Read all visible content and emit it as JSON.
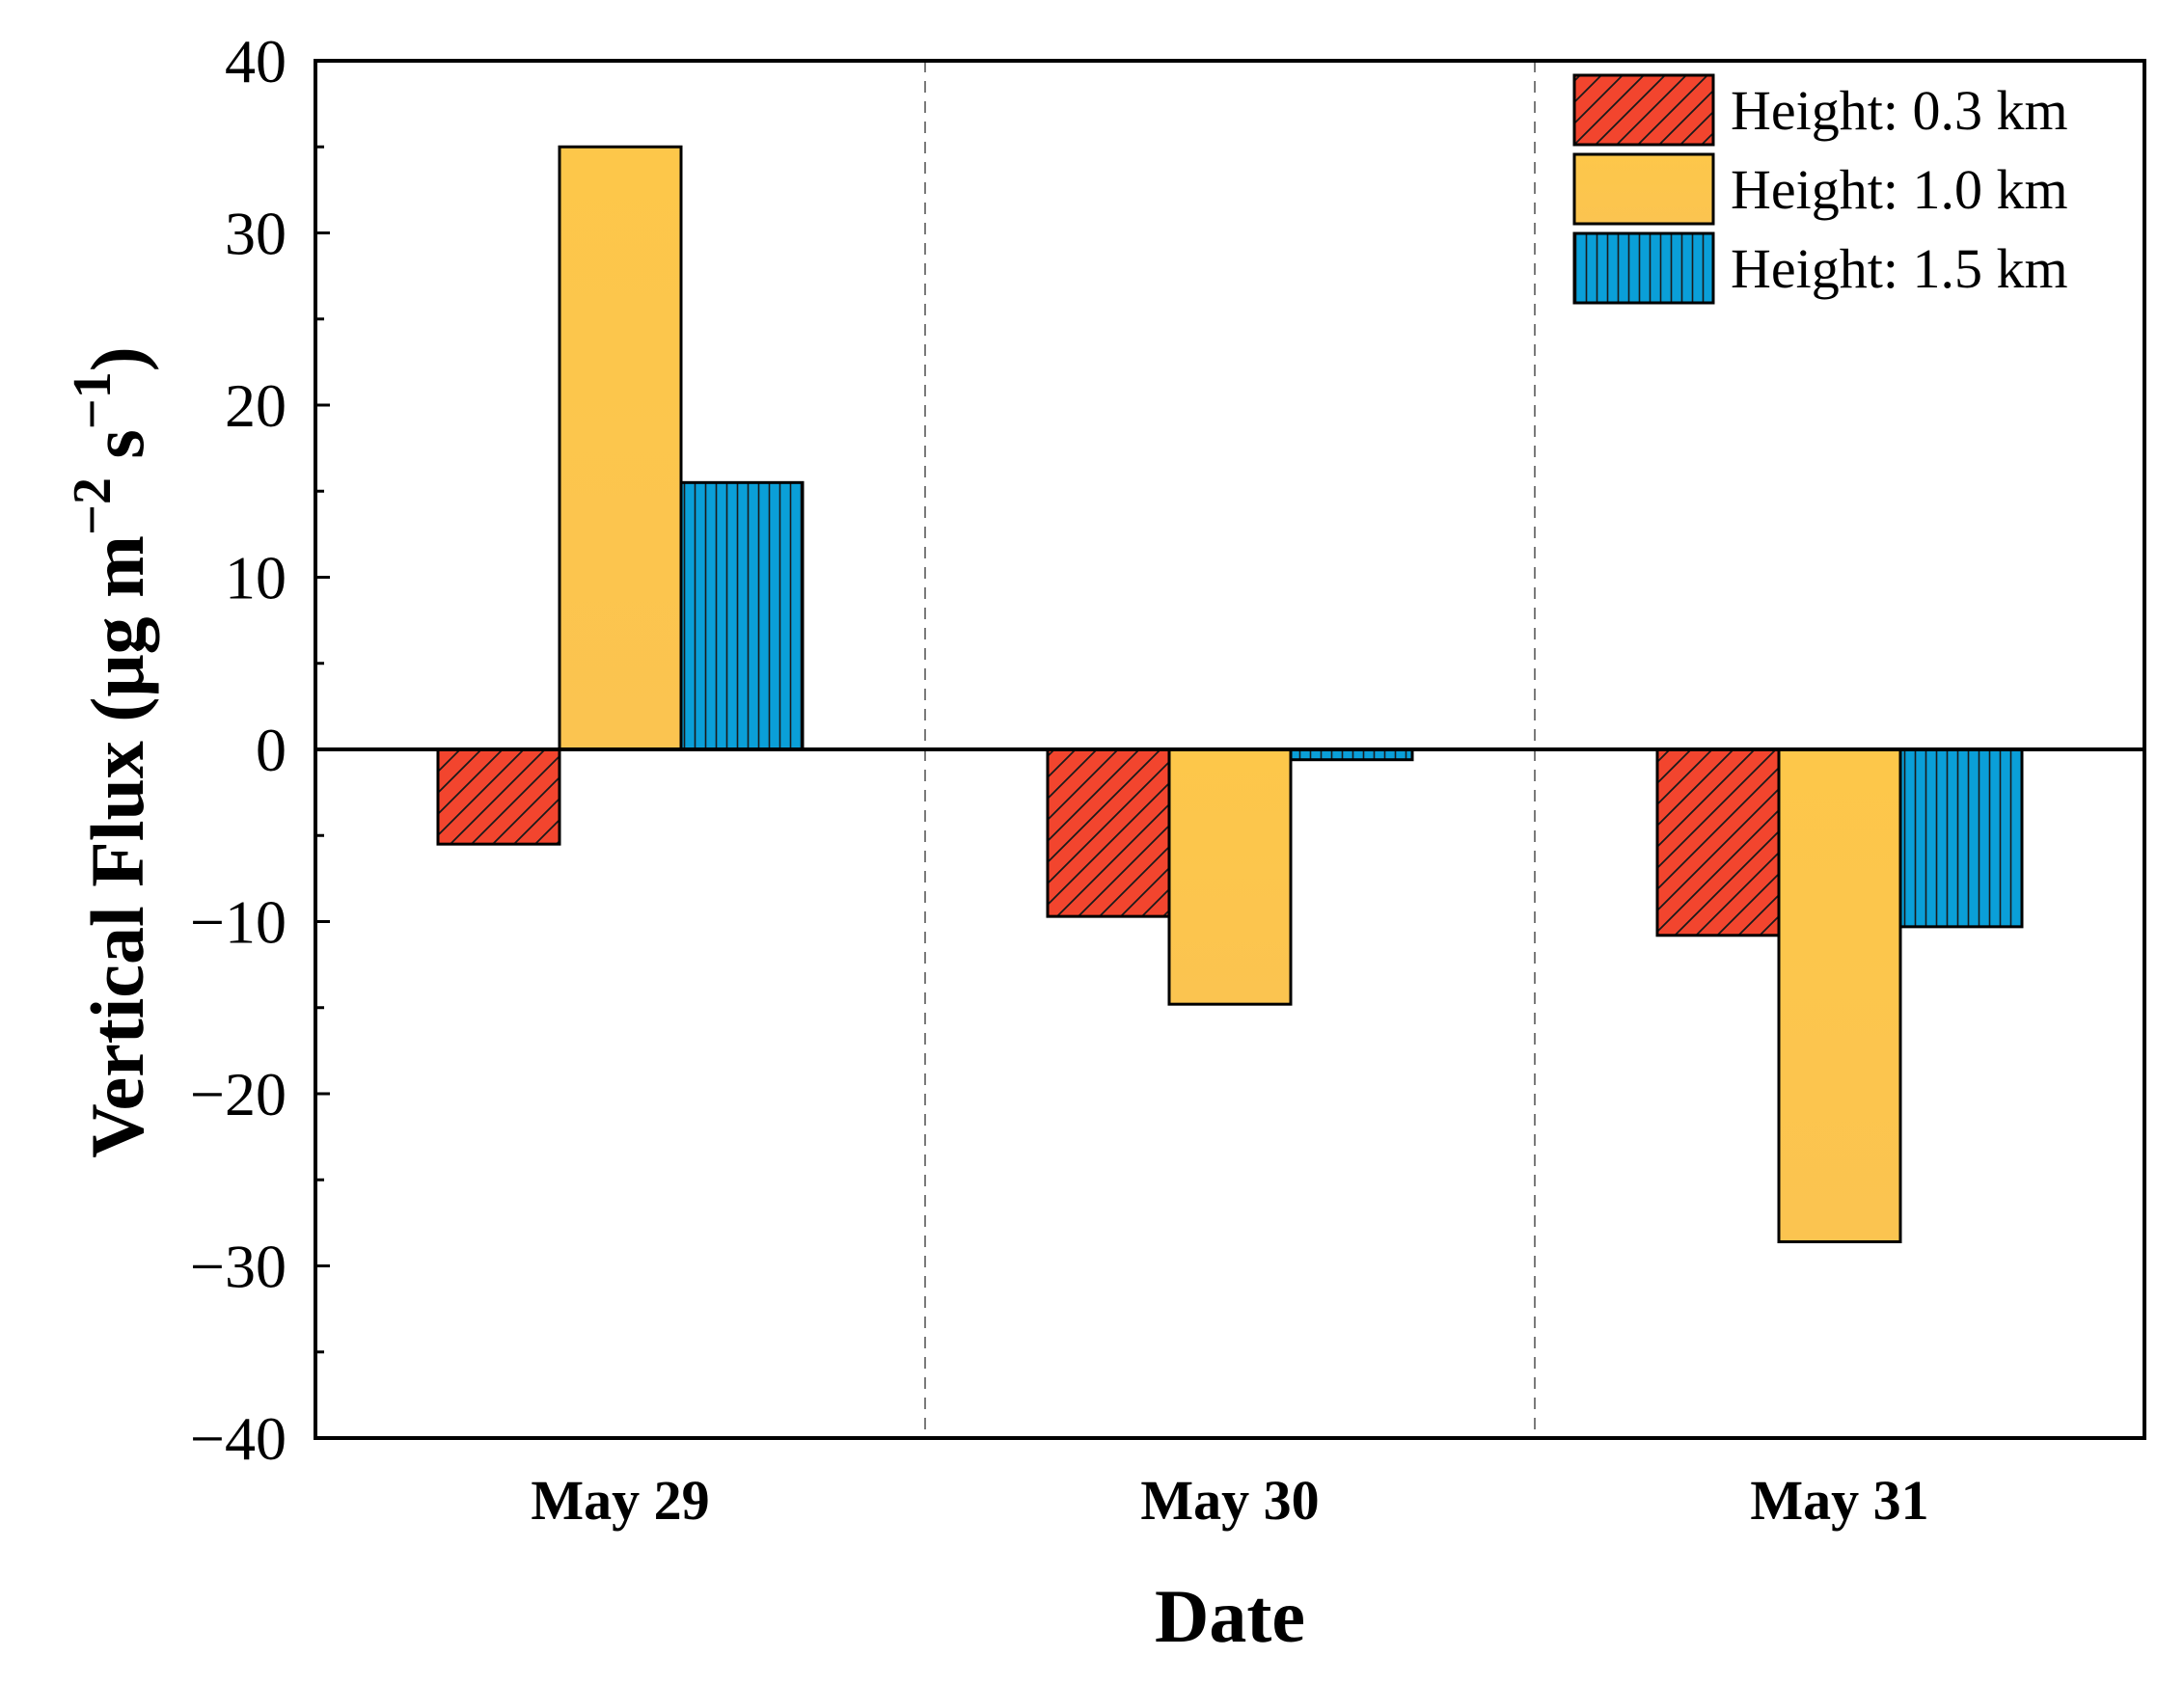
{
  "chart_data": {
    "type": "bar",
    "title": "",
    "xlabel": "Date",
    "ylabel": "Vertical Flux (μg m⁻² s⁻¹)",
    "ylabel_parts": {
      "main": "Vertical Flux (μg m",
      "exp1": "−2",
      "mid": " s",
      "exp2": "−1",
      "end": ")"
    },
    "categories": [
      "May 29",
      "May 30",
      "May 31"
    ],
    "series": [
      {
        "name": "Height: 0.3 km",
        "values": [
          -5.5,
          -9.7,
          -10.8
        ],
        "color": "#f2452e",
        "pattern": "diagonal-hatch"
      },
      {
        "name": "Height: 1.0 km",
        "values": [
          35.0,
          -14.8,
          -28.6
        ],
        "color": "#fdc74a",
        "pattern": "none"
      },
      {
        "name": "Height: 1.5 km",
        "values": [
          15.5,
          -0.6,
          -10.3
        ],
        "color": "#0a9fd8",
        "pattern": "vertical-hatch"
      }
    ],
    "ylim": [
      -40,
      40
    ],
    "yticks": [
      40,
      30,
      20,
      10,
      0,
      -10,
      -20,
      -30,
      -40
    ],
    "ytick_labels": [
      "40",
      "30",
      "20",
      "10",
      "0",
      "−10",
      "−20",
      "−30",
      "−40"
    ],
    "grid": false,
    "category_separators": "dashed",
    "legend_position": "top-right"
  }
}
